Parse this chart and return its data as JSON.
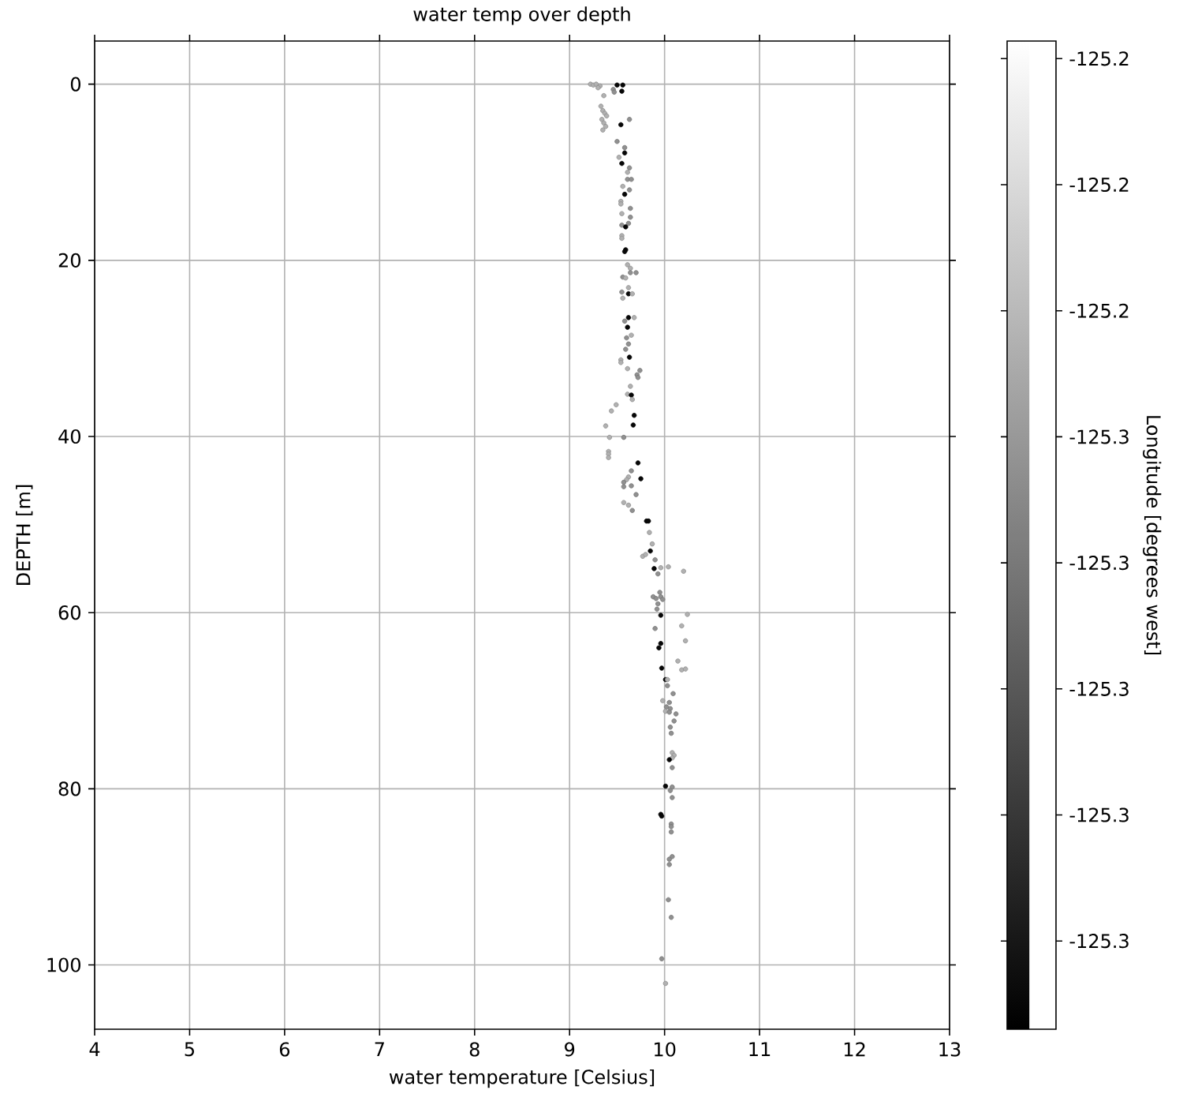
{
  "chart_data": {
    "type": "scatter",
    "title": "water temp over depth",
    "xlabel": "water temperature [Celsius]",
    "ylabel": "DEPTH [m]",
    "clabel": "Longitude [degrees west]",
    "x": [
      9.22,
      9.25,
      9.28,
      9.32,
      9.3,
      9.5,
      9.56,
      9.55,
      9.36,
      9.46,
      9.47,
      9.33,
      9.35,
      9.37,
      9.39,
      9.34,
      9.36,
      9.38,
      9.35,
      9.63,
      9.54,
      9.5,
      9.58,
      9.58,
      9.52,
      9.55,
      9.63,
      9.61,
      9.61,
      9.65,
      9.56,
      9.63,
      9.58,
      9.54,
      9.54,
      9.64,
      9.55,
      9.64,
      9.62,
      9.55,
      9.59,
      9.55,
      9.55,
      9.59,
      9.58,
      9.61,
      9.64,
      9.64,
      9.7,
      9.56,
      9.59,
      9.62,
      9.62,
      9.55,
      9.66,
      9.56,
      9.62,
      9.68,
      9.58,
      9.61,
      9.65,
      9.6,
      9.62,
      9.59,
      9.63,
      9.54,
      9.54,
      9.61,
      9.74,
      9.71,
      9.72,
      9.64,
      9.61,
      9.65,
      9.66,
      9.49,
      9.44,
      9.68,
      9.67,
      9.38,
      9.42,
      9.57,
      9.41,
      9.41,
      9.41,
      9.72,
      9.65,
      9.62,
      9.6,
      9.75,
      9.57,
      9.57,
      9.65,
      9.7,
      9.57,
      9.62,
      9.66,
      9.81,
      9.83,
      9.84,
      9.87,
      9.85,
      9.77,
      9.8,
      9.9,
      9.89,
      9.96,
      10.04,
      10.2,
      9.93,
      9.95,
      9.88,
      9.91,
      9.96,
      9.98,
      9.93,
      9.92,
      9.96,
      10.24,
      9.9,
      10.18,
      10.22,
      9.96,
      9.94,
      10.14,
      9.97,
      10.18,
      10.22,
      10.01,
      10.03,
      10.03,
      10.09,
      9.98,
      10.05,
      10.02,
      10.06,
      10.01,
      10.05,
      10.12,
      10.1,
      10.06,
      10.07,
      10.08,
      10.1,
      10.08,
      10.05,
      10.08,
      10.01,
      10.08,
      10.06,
      10.08,
      9.96,
      9.97,
      10.07,
      10.07,
      10.07,
      10.08,
      10.05,
      10.05,
      10.04,
      10.07,
      9.97,
      10.01
    ],
    "values": [
      0.0,
      0.1,
      0.0,
      0.2,
      0.4,
      0.1,
      0.1,
      0.8,
      1.3,
      0.6,
      0.9,
      2.5,
      3.0,
      3.3,
      3.6,
      4.0,
      4.4,
      4.8,
      5.2,
      4.0,
      4.6,
      6.5,
      7.2,
      7.8,
      8.3,
      9.0,
      9.5,
      10.0,
      10.8,
      10.8,
      11.6,
      12.0,
      12.5,
      13.3,
      13.6,
      14.1,
      14.7,
      15.1,
      15.8,
      16.0,
      16.2,
      17.2,
      17.5,
      18.8,
      19.0,
      20.5,
      20.9,
      21.4,
      21.4,
      21.9,
      22.0,
      23.1,
      23.8,
      23.6,
      23.8,
      24.3,
      26.5,
      26.5,
      26.9,
      27.6,
      28.5,
      28.8,
      29.5,
      30.1,
      31.0,
      31.3,
      31.6,
      32.3,
      32.5,
      33.0,
      33.3,
      34.3,
      35.2,
      35.3,
      35.8,
      36.4,
      37.1,
      37.6,
      38.7,
      38.8,
      40.1,
      40.1,
      41.7,
      42.0,
      42.4,
      43.0,
      43.9,
      44.6,
      44.9,
      44.8,
      45.2,
      45.7,
      45.6,
      46.6,
      47.5,
      47.8,
      48.4,
      49.6,
      49.6,
      50.9,
      52.2,
      53.0,
      53.6,
      53.4,
      54.0,
      55.0,
      54.9,
      54.8,
      55.3,
      55.6,
      57.7,
      58.2,
      58.4,
      58.2,
      58.5,
      59.0,
      59.6,
      60.3,
      60.2,
      61.8,
      61.5,
      63.2,
      63.5,
      64.0,
      65.5,
      66.3,
      66.5,
      66.4,
      67.6,
      67.6,
      68.3,
      69.2,
      70.0,
      70.2,
      70.7,
      70.9,
      71.2,
      71.3,
      71.5,
      72.3,
      73.0,
      73.7,
      75.9,
      76.2,
      76.5,
      76.7,
      77.6,
      79.7,
      79.8,
      80.2,
      81.0,
      82.9,
      83.1,
      84.0,
      84.3,
      84.9,
      87.7,
      88.0,
      88.6,
      92.6,
      94.6,
      99.3,
      102.1
    ],
    "cvalues": [
      -125.248,
      -125.248,
      -125.248,
      -125.248,
      -125.248,
      -125.3,
      -125.3,
      -125.3,
      -125.248,
      -125.258,
      -125.258,
      -125.248,
      -125.248,
      -125.248,
      -125.248,
      -125.248,
      -125.248,
      -125.248,
      -125.248,
      -125.258,
      -125.3,
      -125.258,
      -125.258,
      -125.3,
      -125.248,
      -125.3,
      -125.258,
      -125.248,
      -125.258,
      -125.258,
      -125.248,
      -125.258,
      -125.3,
      -125.248,
      -125.248,
      -125.258,
      -125.248,
      -125.258,
      -125.258,
      -125.258,
      -125.3,
      -125.248,
      -125.248,
      -125.3,
      -125.3,
      -125.248,
      -125.248,
      -125.258,
      -125.258,
      -125.258,
      -125.248,
      -125.248,
      -125.3,
      -125.258,
      -125.248,
      -125.248,
      -125.3,
      -125.248,
      -125.258,
      -125.3,
      -125.248,
      -125.258,
      -125.258,
      -125.258,
      -125.3,
      -125.248,
      -125.248,
      -125.248,
      -125.258,
      -125.258,
      -125.258,
      -125.248,
      -125.248,
      -125.3,
      -125.248,
      -125.248,
      -125.248,
      -125.3,
      -125.3,
      -125.248,
      -125.248,
      -125.258,
      -125.248,
      -125.248,
      -125.248,
      -125.3,
      -125.258,
      -125.248,
      -125.248,
      -125.3,
      -125.258,
      -125.258,
      -125.258,
      -125.258,
      -125.248,
      -125.248,
      -125.258,
      -125.3,
      -125.3,
      -125.248,
      -125.248,
      -125.3,
      -125.248,
      -125.248,
      -125.258,
      -125.3,
      -125.248,
      -125.248,
      -125.248,
      -125.258,
      -125.258,
      -125.258,
      -125.258,
      -125.258,
      -125.258,
      -125.258,
      -125.258,
      -125.3,
      -125.248,
      -125.258,
      -125.248,
      -125.248,
      -125.3,
      -125.3,
      -125.248,
      -125.3,
      -125.248,
      -125.248,
      -125.3,
      -125.248,
      -125.258,
      -125.258,
      -125.248,
      -125.258,
      -125.258,
      -125.258,
      -125.248,
      -125.258,
      -125.258,
      -125.258,
      -125.258,
      -125.258,
      -125.248,
      -125.248,
      -125.248,
      -125.3,
      -125.258,
      -125.3,
      -125.258,
      -125.258,
      -125.258,
      -125.3,
      -125.3,
      -125.258,
      -125.258,
      -125.258,
      -125.258,
      -125.258,
      -125.258,
      -125.258,
      -125.258,
      -125.258,
      -125.248
    ],
    "xlim": [
      4,
      13
    ],
    "xticks": [
      4,
      5,
      6,
      7,
      8,
      9,
      10,
      11,
      12,
      13
    ],
    "ylim": [
      107.3,
      -4.9
    ],
    "yticks": [
      0,
      20,
      40,
      60,
      80,
      100
    ],
    "clim": [
      -125.302,
      -125.2236
    ],
    "cticks": [
      {
        "value": -125.295,
        "label": "-125.3"
      },
      {
        "value": -125.285,
        "label": "-125.3"
      },
      {
        "value": -125.275,
        "label": "-125.3"
      },
      {
        "value": -125.265,
        "label": "-125.3"
      },
      {
        "value": -125.255,
        "label": "-125.3"
      },
      {
        "value": -125.245,
        "label": "-125.2"
      },
      {
        "value": -125.235,
        "label": "-125.2"
      },
      {
        "value": -125.225,
        "label": "-125.2"
      }
    ],
    "grid": true,
    "marker": "circle"
  }
}
